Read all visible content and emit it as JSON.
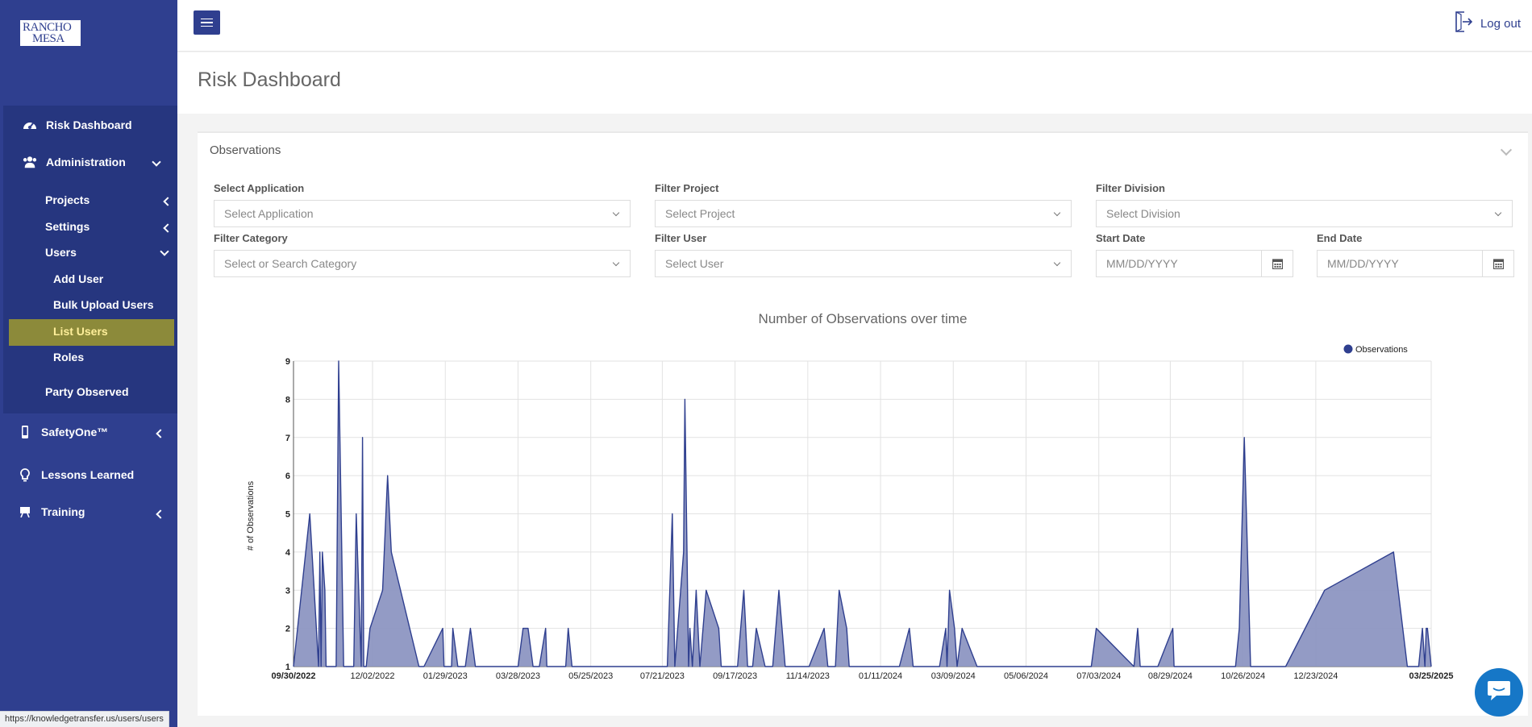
{
  "sidebar": {
    "logo_line1": "RANCHO",
    "logo_line2": "MESA",
    "items": [
      {
        "label": "Risk Dashboard",
        "icon": "dashboard-gauge-icon"
      },
      {
        "label": "Administration",
        "icon": "users-group-icon"
      },
      {
        "label": "Projects"
      },
      {
        "label": "Settings"
      },
      {
        "label": "Users"
      },
      {
        "label": "Add User"
      },
      {
        "label": "Bulk Upload Users"
      },
      {
        "label": "List Users",
        "active": true
      },
      {
        "label": "Roles"
      },
      {
        "label": "Party Observed"
      },
      {
        "label": "SafetyOne™",
        "icon": "mobile-phone-icon"
      },
      {
        "label": "Lessons Learned",
        "icon": "lightbulb-icon"
      },
      {
        "label": "Training",
        "icon": "easel-icon"
      }
    ]
  },
  "header": {
    "logout_label": "Log out",
    "page_title": "Risk Dashboard"
  },
  "card": {
    "title": "Observations",
    "filters": {
      "application": {
        "label": "Select Application",
        "placeholder": "Select Application"
      },
      "project": {
        "label": "Filter Project",
        "placeholder": "Select Project"
      },
      "division": {
        "label": "Filter Division",
        "placeholder": "Select Division"
      },
      "category": {
        "label": "Filter Category",
        "placeholder": "Select or Search Category"
      },
      "user": {
        "label": "Filter User",
        "placeholder": "Select User"
      },
      "start_date": {
        "label": "Start Date",
        "placeholder": "MM/DD/YYYY"
      },
      "end_date": {
        "label": "End Date",
        "placeholder": "MM/DD/YYYY"
      }
    }
  },
  "chart_data": {
    "type": "area",
    "title": "Number of Observations over time",
    "xlabel": "",
    "ylabel": "# of Observations",
    "ylim": [
      1,
      9
    ],
    "yticks": [
      1,
      2,
      3,
      4,
      5,
      6,
      7,
      8,
      9
    ],
    "grid": true,
    "legend_position": "top-right",
    "series_color": "#2f3f8f",
    "fill_color": "#8d96c2",
    "xlim": [
      "2022-09-30",
      "2025-03-25"
    ],
    "xticks": [
      "09/30/2022",
      "12/02/2022",
      "01/29/2023",
      "03/28/2023",
      "05/25/2023",
      "07/21/2023",
      "09/17/2023",
      "11/14/2023",
      "01/11/2024",
      "03/09/2024",
      "05/06/2024",
      "07/03/2024",
      "08/29/2024",
      "10/26/2024",
      "12/23/2024",
      "03/25/2025"
    ],
    "xticks_bold": [
      "09/30/2022",
      "03/25/2025"
    ],
    "series": [
      {
        "name": "Observations",
        "points": [
          [
            "2022-09-30",
            1
          ],
          [
            "2022-10-13",
            5
          ],
          [
            "2022-10-20",
            1
          ],
          [
            "2022-10-21",
            4
          ],
          [
            "2022-10-22",
            1
          ],
          [
            "2022-10-23",
            4
          ],
          [
            "2022-10-25",
            3
          ],
          [
            "2022-10-26",
            1
          ],
          [
            "2022-11-03",
            1
          ],
          [
            "2022-11-05",
            9
          ],
          [
            "2022-11-09",
            1
          ],
          [
            "2022-11-17",
            1
          ],
          [
            "2022-11-19",
            5
          ],
          [
            "2022-11-23",
            1
          ],
          [
            "2022-11-24",
            7
          ],
          [
            "2022-11-25",
            1
          ],
          [
            "2022-11-27",
            1
          ],
          [
            "2022-11-30",
            2
          ],
          [
            "2022-12-10",
            3
          ],
          [
            "2022-12-14",
            6
          ],
          [
            "2022-12-17",
            4
          ],
          [
            "2023-01-08",
            1
          ],
          [
            "2023-01-12",
            1
          ],
          [
            "2023-01-27",
            2
          ],
          [
            "2023-01-28",
            1
          ],
          [
            "2023-02-03",
            1
          ],
          [
            "2023-02-04",
            2
          ],
          [
            "2023-02-08",
            1
          ],
          [
            "2023-02-14",
            1
          ],
          [
            "2023-02-18",
            2
          ],
          [
            "2023-02-22",
            1
          ],
          [
            "2023-03-28",
            1
          ],
          [
            "2023-04-01",
            2
          ],
          [
            "2023-04-05",
            2
          ],
          [
            "2023-04-09",
            1
          ],
          [
            "2023-04-14",
            1
          ],
          [
            "2023-04-19",
            2
          ],
          [
            "2023-04-20",
            1
          ],
          [
            "2023-05-05",
            1
          ],
          [
            "2023-05-07",
            2
          ],
          [
            "2023-05-10",
            1
          ],
          [
            "2023-07-25",
            1
          ],
          [
            "2023-07-29",
            5
          ],
          [
            "2023-07-31",
            1
          ],
          [
            "2023-08-07",
            4
          ],
          [
            "2023-08-08",
            8
          ],
          [
            "2023-08-11",
            1
          ],
          [
            "2023-08-12",
            2
          ],
          [
            "2023-08-14",
            1
          ],
          [
            "2023-08-17",
            3
          ],
          [
            "2023-08-20",
            1
          ],
          [
            "2023-08-25",
            3
          ],
          [
            "2023-09-04",
            2
          ],
          [
            "2023-09-06",
            1
          ],
          [
            "2023-09-19",
            1
          ],
          [
            "2023-09-24",
            3
          ],
          [
            "2023-09-27",
            1
          ],
          [
            "2023-10-01",
            1
          ],
          [
            "2023-10-04",
            2
          ],
          [
            "2023-10-11",
            1
          ],
          [
            "2023-10-17",
            1
          ],
          [
            "2023-10-22",
            3
          ],
          [
            "2023-10-27",
            1
          ],
          [
            "2023-11-15",
            1
          ],
          [
            "2023-11-27",
            2
          ],
          [
            "2023-11-30",
            1
          ],
          [
            "2023-12-06",
            1
          ],
          [
            "2023-12-09",
            3
          ],
          [
            "2023-12-15",
            2
          ],
          [
            "2023-12-17",
            1
          ],
          [
            "2024-01-26",
            1
          ],
          [
            "2024-02-03",
            2
          ],
          [
            "2024-02-06",
            1
          ],
          [
            "2024-02-27",
            1
          ],
          [
            "2024-03-03",
            2
          ],
          [
            "2024-03-04",
            1
          ],
          [
            "2024-03-06",
            3
          ],
          [
            "2024-03-10",
            2
          ],
          [
            "2024-03-12",
            1
          ],
          [
            "2024-03-16",
            2
          ],
          [
            "2024-03-28",
            1
          ],
          [
            "2024-06-27",
            1
          ],
          [
            "2024-07-01",
            2
          ],
          [
            "2024-07-31",
            1
          ],
          [
            "2024-08-03",
            2
          ],
          [
            "2024-08-05",
            1
          ],
          [
            "2024-08-19",
            1
          ],
          [
            "2024-08-31",
            2
          ],
          [
            "2024-09-01",
            1
          ],
          [
            "2024-10-20",
            1
          ],
          [
            "2024-10-23",
            2
          ],
          [
            "2024-10-27",
            7
          ],
          [
            "2024-11-01",
            1
          ],
          [
            "2024-11-29",
            1
          ],
          [
            "2024-12-30",
            3
          ],
          [
            "2025-02-23",
            4
          ],
          [
            "2025-03-06",
            1
          ],
          [
            "2025-03-15",
            1
          ],
          [
            "2025-03-18",
            2
          ],
          [
            "2025-03-20",
            1
          ],
          [
            "2025-03-21",
            2
          ],
          [
            "2025-03-22",
            2
          ],
          [
            "2025-03-25",
            1
          ]
        ]
      }
    ]
  },
  "status_url": "https://knowledgetransfer.us/users/users"
}
